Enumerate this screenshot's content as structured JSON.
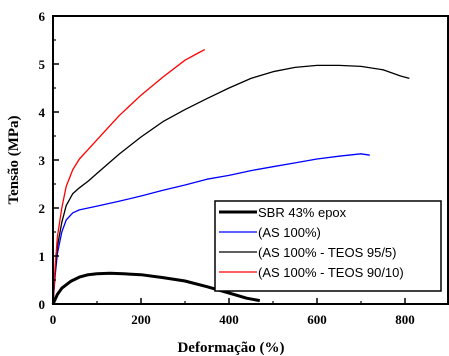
{
  "chart_data": {
    "type": "line",
    "title": "",
    "xlabel": "Deformação (%)",
    "ylabel": "Tensão (MPa)",
    "xlim": [
      0,
      900
    ],
    "ylim": [
      0,
      6
    ],
    "xticks": [
      0,
      200,
      400,
      600,
      800
    ],
    "yticks": [
      0,
      1,
      2,
      3,
      4,
      5,
      6
    ],
    "grid": false,
    "legend_position": "bottom-right",
    "series": [
      {
        "name": "SBR 43% epox",
        "color": "#000000",
        "thick": true,
        "points": [
          [
            0,
            0
          ],
          [
            10,
            0.2
          ],
          [
            20,
            0.33
          ],
          [
            40,
            0.47
          ],
          [
            60,
            0.56
          ],
          [
            80,
            0.61
          ],
          [
            100,
            0.63
          ],
          [
            130,
            0.64
          ],
          [
            160,
            0.63
          ],
          [
            200,
            0.61
          ],
          [
            250,
            0.55
          ],
          [
            300,
            0.48
          ],
          [
            350,
            0.36
          ],
          [
            400,
            0.23
          ],
          [
            440,
            0.12
          ],
          [
            470,
            0.07
          ]
        ]
      },
      {
        "name": "(AS 100%)",
        "color": "#0000ff",
        "thick": false,
        "points": [
          [
            0,
            0
          ],
          [
            5,
            0.6
          ],
          [
            10,
            1.05
          ],
          [
            20,
            1.5
          ],
          [
            30,
            1.75
          ],
          [
            45,
            1.9
          ],
          [
            60,
            1.96
          ],
          [
            100,
            2.04
          ],
          [
            150,
            2.14
          ],
          [
            200,
            2.25
          ],
          [
            250,
            2.37
          ],
          [
            300,
            2.48
          ],
          [
            350,
            2.6
          ],
          [
            400,
            2.68
          ],
          [
            450,
            2.78
          ],
          [
            500,
            2.86
          ],
          [
            550,
            2.94
          ],
          [
            600,
            3.02
          ],
          [
            650,
            3.08
          ],
          [
            700,
            3.13
          ],
          [
            720,
            3.1
          ]
        ]
      },
      {
        "name": "(AS 100% - TEOS 95/5)",
        "color": "#000000",
        "thick": false,
        "points": [
          [
            0,
            0
          ],
          [
            5,
            0.7
          ],
          [
            10,
            1.2
          ],
          [
            20,
            1.7
          ],
          [
            30,
            2.05
          ],
          [
            45,
            2.3
          ],
          [
            60,
            2.42
          ],
          [
            80,
            2.56
          ],
          [
            100,
            2.72
          ],
          [
            150,
            3.12
          ],
          [
            200,
            3.48
          ],
          [
            250,
            3.8
          ],
          [
            300,
            4.05
          ],
          [
            350,
            4.28
          ],
          [
            400,
            4.5
          ],
          [
            450,
            4.7
          ],
          [
            500,
            4.84
          ],
          [
            550,
            4.93
          ],
          [
            600,
            4.97
          ],
          [
            650,
            4.97
          ],
          [
            700,
            4.95
          ],
          [
            750,
            4.88
          ],
          [
            790,
            4.75
          ],
          [
            810,
            4.7
          ]
        ]
      },
      {
        "name": "(AS 100% - TEOS 90/10)",
        "color": "#ff0000",
        "thick": false,
        "points": [
          [
            0,
            0
          ],
          [
            5,
            0.8
          ],
          [
            10,
            1.4
          ],
          [
            20,
            2.0
          ],
          [
            30,
            2.45
          ],
          [
            45,
            2.8
          ],
          [
            60,
            3.02
          ],
          [
            80,
            3.22
          ],
          [
            100,
            3.42
          ],
          [
            150,
            3.92
          ],
          [
            200,
            4.35
          ],
          [
            250,
            4.73
          ],
          [
            300,
            5.08
          ],
          [
            330,
            5.23
          ],
          [
            345,
            5.3
          ]
        ]
      }
    ]
  }
}
